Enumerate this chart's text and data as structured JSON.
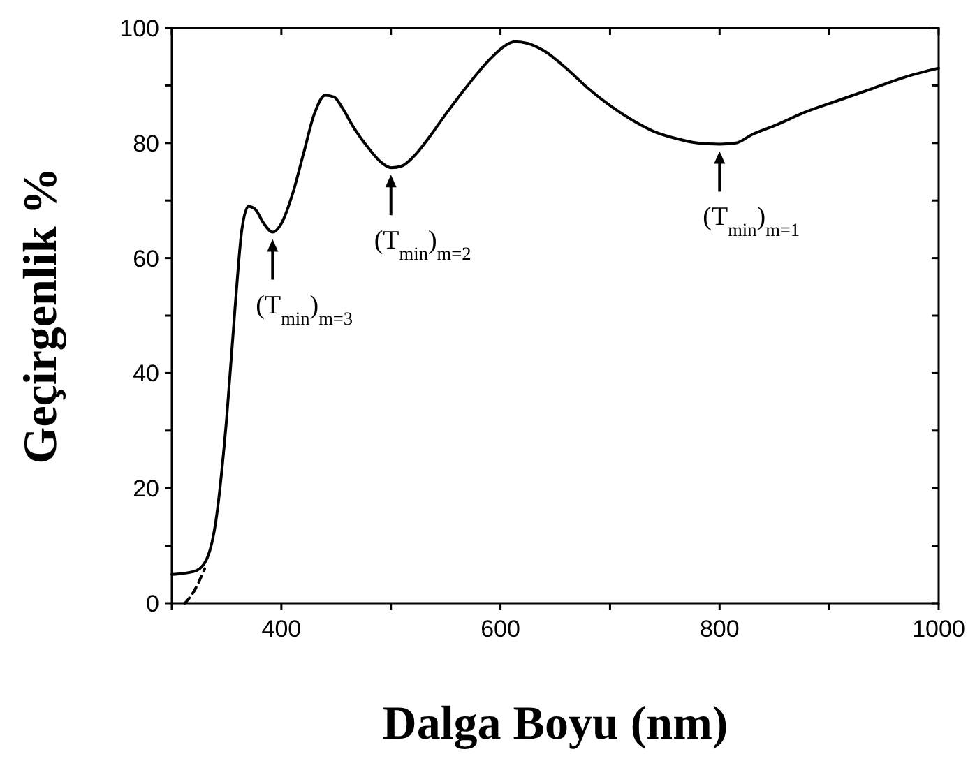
{
  "chart_data": {
    "type": "line",
    "xlabel": "Dalga Boyu (nm)",
    "ylabel": "Geçirgenlik %",
    "xlim": [
      300,
      1000
    ],
    "ylim": [
      0,
      100
    ],
    "xticks": [
      {
        "value": 300,
        "label": null
      },
      400,
      {
        "value": 500,
        "label": null
      },
      600,
      {
        "value": 700,
        "label": null
      },
      800,
      {
        "value": 900,
        "label": null
      },
      1000
    ],
    "yticks": [
      0,
      {
        "value": 10,
        "label": null
      },
      20,
      {
        "value": 30,
        "label": null
      },
      40,
      {
        "value": 50,
        "label": null
      },
      60,
      {
        "value": 70,
        "label": null
      },
      80,
      {
        "value": 90,
        "label": null
      },
      100
    ],
    "grid": false,
    "marker": "none",
    "series": [
      {
        "color": "#000000",
        "line_style": "solid",
        "x": [
          300,
          320,
          330,
          340,
          350,
          358,
          364,
          370,
          376,
          384,
          392,
          400,
          410,
          420,
          430,
          440,
          448,
          456,
          465,
          480,
          492,
          500,
          510,
          520,
          535,
          550,
          570,
          590,
          605,
          613,
          625,
          640,
          660,
          680,
          700,
          720,
          740,
          760,
          780,
          800,
          815,
          830,
          850,
          880,
          910,
          940,
          970,
          1000
        ],
        "values": [
          5,
          5.5,
          7,
          14,
          32,
          52,
          65,
          69,
          68.5,
          66,
          64.5,
          66,
          71,
          78,
          85,
          88.3,
          88,
          86,
          83,
          79,
          76.5,
          75.7,
          76,
          77.5,
          81,
          85,
          90,
          94.5,
          97,
          97.6,
          97.3,
          96,
          93,
          89.5,
          86.5,
          84,
          82,
          80.8,
          80,
          79.8,
          80,
          81.5,
          83,
          85.5,
          87.5,
          89.5,
          91.5,
          93
        ]
      },
      {
        "color": "#000000",
        "line_style": "dashed",
        "x": [
          312,
          320,
          330
        ],
        "values": [
          0,
          2,
          6
        ]
      }
    ],
    "annotations": [
      {
        "text": "(T$_{min}$)$_{m=3}$",
        "x": 392,
        "y": 64.5
      },
      {
        "text": "(T$_{min}$)$_{m=2}$",
        "x": 500,
        "y": 75.7
      },
      {
        "text": "(T$_{min}$)$_{m=1}$",
        "x": 800,
        "y": 79.8
      }
    ]
  }
}
